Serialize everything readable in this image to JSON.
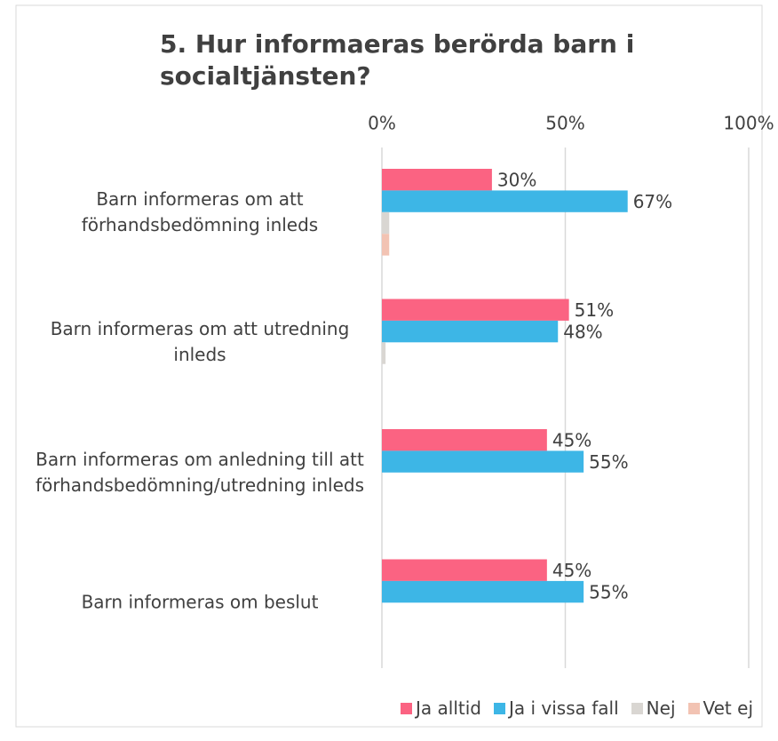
{
  "chart_data": {
    "type": "bar",
    "orientation": "horizontal",
    "title": "5. Hur informaeras berörda barn i socialtjänsten?",
    "categories": [
      "Barn informeras om att förhandsbedömning inleds",
      "Barn informeras om att utredning inleds",
      "Barn informeras om anledning till att förhandsbedömning/utredning inleds",
      "Barn informeras om beslut"
    ],
    "series": [
      {
        "name": "Ja alltid",
        "color": "#fb6382",
        "values": [
          30,
          51,
          45,
          45
        ],
        "value_labels": [
          "30%",
          "51%",
          "45%",
          "45%"
        ]
      },
      {
        "name": "Ja i vissa fall",
        "color": "#3db6e6",
        "values": [
          67,
          48,
          55,
          55
        ],
        "value_labels": [
          "67%",
          "48%",
          "55%",
          "55%"
        ]
      },
      {
        "name": "Nej",
        "color": "#d9d6d2",
        "values": [
          2,
          1,
          0,
          0
        ]
      },
      {
        "name": "Vet ej",
        "color": "#f2c3b3",
        "values": [
          2,
          0,
          0,
          0
        ]
      }
    ],
    "xlim": [
      0,
      100
    ],
    "xticks": [
      {
        "value": 0,
        "label": "0%"
      },
      {
        "value": 50,
        "label": "50%"
      },
      {
        "value": 100,
        "label": "100%"
      }
    ],
    "grid": true,
    "legend": "bottom"
  }
}
